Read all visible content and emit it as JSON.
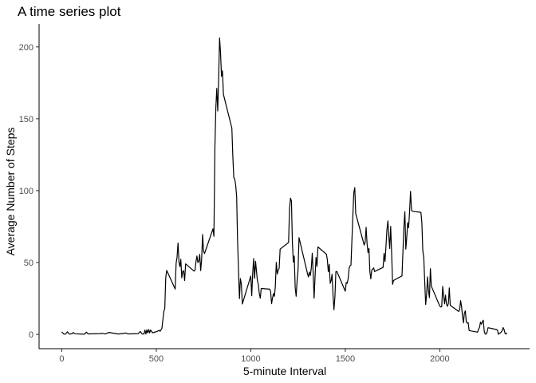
{
  "chart_data": {
    "type": "line",
    "title": "A time series plot",
    "xlabel": "5-minute Interval",
    "ylabel": "Average Number of Steps",
    "xlim": [
      -120,
      2475
    ],
    "ylim": [
      -10,
      216
    ],
    "xticks": [
      0,
      500,
      1000,
      1500,
      2000
    ],
    "yticks": [
      0,
      50,
      100,
      150,
      200
    ],
    "grid": false,
    "series": [
      {
        "color": "#000000",
        "points": [
          [
            0,
            1.7
          ],
          [
            10,
            0.3
          ],
          [
            20,
            0.1
          ],
          [
            30,
            1.8
          ],
          [
            40,
            0.1
          ],
          [
            55,
            0.5
          ],
          [
            60,
            1.2
          ],
          [
            70,
            0.4
          ],
          [
            100,
            0.2
          ],
          [
            120,
            0.1
          ],
          [
            130,
            1.5
          ],
          [
            140,
            0.3
          ],
          [
            200,
            0.5
          ],
          [
            215,
            0.7
          ],
          [
            230,
            0.2
          ],
          [
            250,
            1.3
          ],
          [
            300,
            0.2
          ],
          [
            340,
            0.9
          ],
          [
            350,
            0.3
          ],
          [
            405,
            0.5
          ],
          [
            415,
            2.0
          ],
          [
            425,
            0.3
          ],
          [
            435,
            0.2
          ],
          [
            440,
            3.0
          ],
          [
            445,
            0.2
          ],
          [
            450,
            3.1
          ],
          [
            455,
            1.0
          ],
          [
            460,
            3.3
          ],
          [
            465,
            1.0
          ],
          [
            470,
            3.0
          ],
          [
            480,
            1.1
          ],
          [
            505,
            2.0
          ],
          [
            515,
            2.8
          ],
          [
            520,
            2.1
          ],
          [
            530,
            4.1
          ],
          [
            540,
            16.0
          ],
          [
            545,
            18.0
          ],
          [
            550,
            39.5
          ],
          [
            555,
            44.5
          ],
          [
            600,
            31.5
          ],
          [
            605,
            49.3
          ],
          [
            610,
            53.8
          ],
          [
            615,
            63.5
          ],
          [
            620,
            50.2
          ],
          [
            625,
            47.1
          ],
          [
            630,
            52.2
          ],
          [
            635,
            39.3
          ],
          [
            640,
            44.0
          ],
          [
            645,
            44.2
          ],
          [
            650,
            37.4
          ],
          [
            655,
            49.0
          ],
          [
            700,
            44.0
          ],
          [
            705,
            44.6
          ],
          [
            710,
            50.5
          ],
          [
            715,
            54.5
          ],
          [
            720,
            49.9
          ],
          [
            725,
            50.9
          ],
          [
            730,
            55.7
          ],
          [
            735,
            44.3
          ],
          [
            740,
            52.3
          ],
          [
            745,
            69.5
          ],
          [
            750,
            57.8
          ],
          [
            755,
            56.2
          ],
          [
            800,
            73.4
          ],
          [
            805,
            68.2
          ],
          [
            810,
            129.4
          ],
          [
            815,
            157.5
          ],
          [
            820,
            171.2
          ],
          [
            825,
            155.4
          ],
          [
            830,
            177.3
          ],
          [
            835,
            206.2
          ],
          [
            840,
            195.9
          ],
          [
            845,
            179.6
          ],
          [
            850,
            183.4
          ],
          [
            855,
            167.0
          ],
          [
            900,
            143.5
          ],
          [
            905,
            124.0
          ],
          [
            910,
            109.1
          ],
          [
            915,
            108.1
          ],
          [
            920,
            103.7
          ],
          [
            925,
            95.9
          ],
          [
            930,
            66.2
          ],
          [
            935,
            45.2
          ],
          [
            940,
            24.8
          ],
          [
            945,
            38.8
          ],
          [
            950,
            34.98
          ],
          [
            955,
            21.1
          ],
          [
            1000,
            40.6
          ],
          [
            1005,
            26.8
          ],
          [
            1010,
            42.4
          ],
          [
            1015,
            52.7
          ],
          [
            1020,
            38.9
          ],
          [
            1025,
            50.8
          ],
          [
            1030,
            44.3
          ],
          [
            1035,
            37.4
          ],
          [
            1040,
            34.7
          ],
          [
            1045,
            28.3
          ],
          [
            1050,
            25.1
          ],
          [
            1055,
            31.9
          ],
          [
            1100,
            31.4
          ],
          [
            1105,
            29.7
          ],
          [
            1110,
            21.3
          ],
          [
            1115,
            25.5
          ],
          [
            1120,
            28.4
          ],
          [
            1125,
            26.5
          ],
          [
            1130,
            33.4
          ],
          [
            1135,
            50.0
          ],
          [
            1140,
            42.0
          ],
          [
            1145,
            44.6
          ],
          [
            1150,
            46.0
          ],
          [
            1155,
            59.3
          ],
          [
            1200,
            63.9
          ],
          [
            1205,
            87.6
          ],
          [
            1210,
            94.8
          ],
          [
            1215,
            92.8
          ],
          [
            1220,
            63.4
          ],
          [
            1225,
            50.2
          ],
          [
            1230,
            54.5
          ],
          [
            1235,
            32.4
          ],
          [
            1240,
            26.5
          ],
          [
            1245,
            37.7
          ],
          [
            1250,
            45.1
          ],
          [
            1255,
            67.3
          ],
          [
            1300,
            42.3
          ],
          [
            1305,
            39.9
          ],
          [
            1310,
            43.3
          ],
          [
            1315,
            40.98
          ],
          [
            1320,
            46.2
          ],
          [
            1325,
            56.4
          ],
          [
            1330,
            42.8
          ],
          [
            1335,
            25.1
          ],
          [
            1340,
            39.97
          ],
          [
            1345,
            53.5
          ],
          [
            1350,
            47.3
          ],
          [
            1355,
            60.8
          ],
          [
            1400,
            55.75
          ],
          [
            1405,
            51.96
          ],
          [
            1410,
            43.6
          ],
          [
            1415,
            48.7
          ],
          [
            1420,
            35.5
          ],
          [
            1425,
            37.5
          ],
          [
            1430,
            41.8
          ],
          [
            1435,
            27.5
          ],
          [
            1440,
            17.1
          ],
          [
            1445,
            26.1
          ],
          [
            1450,
            43.6
          ],
          [
            1455,
            43.8
          ],
          [
            1500,
            30.0
          ],
          [
            1505,
            36.1
          ],
          [
            1510,
            35.5
          ],
          [
            1515,
            38.8
          ],
          [
            1520,
            45.96
          ],
          [
            1525,
            47.75
          ],
          [
            1530,
            48.1
          ],
          [
            1535,
            65.3
          ],
          [
            1540,
            82.9
          ],
          [
            1545,
            98.7
          ],
          [
            1550,
            102.1
          ],
          [
            1555,
            83.96
          ],
          [
            1600,
            62.1
          ],
          [
            1605,
            64.1
          ],
          [
            1610,
            74.5
          ],
          [
            1615,
            63.2
          ],
          [
            1620,
            56.9
          ],
          [
            1625,
            59.8
          ],
          [
            1630,
            43.9
          ],
          [
            1635,
            38.6
          ],
          [
            1640,
            44.7
          ],
          [
            1645,
            45.5
          ],
          [
            1650,
            46.2
          ],
          [
            1655,
            43.7
          ],
          [
            1700,
            46.6
          ],
          [
            1705,
            56.3
          ],
          [
            1710,
            50.7
          ],
          [
            1715,
            61.2
          ],
          [
            1720,
            72.7
          ],
          [
            1725,
            78.9
          ],
          [
            1730,
            68.9
          ],
          [
            1735,
            59.7
          ],
          [
            1740,
            75.1
          ],
          [
            1745,
            56.5
          ],
          [
            1750,
            34.8
          ],
          [
            1755,
            37.5
          ],
          [
            1800,
            40.7
          ],
          [
            1805,
            58.0
          ],
          [
            1810,
            74.7
          ],
          [
            1815,
            85.3
          ],
          [
            1820,
            59.3
          ],
          [
            1825,
            67.8
          ],
          [
            1830,
            77.7
          ],
          [
            1835,
            74.2
          ],
          [
            1840,
            85.3
          ],
          [
            1845,
            99.5
          ],
          [
            1850,
            86.6
          ],
          [
            1855,
            85.6
          ],
          [
            1900,
            84.9
          ],
          [
            1905,
            77.8
          ],
          [
            1910,
            58.0
          ],
          [
            1915,
            53.4
          ],
          [
            1920,
            36.3
          ],
          [
            1925,
            20.7
          ],
          [
            1930,
            27.4
          ],
          [
            1935,
            40.0
          ],
          [
            1940,
            30.2
          ],
          [
            1945,
            25.5
          ],
          [
            1950,
            45.7
          ],
          [
            1955,
            33.5
          ],
          [
            2000,
            19.6
          ],
          [
            2005,
            19.0
          ],
          [
            2010,
            19.3
          ],
          [
            2015,
            33.3
          ],
          [
            2020,
            26.8
          ],
          [
            2025,
            21.2
          ],
          [
            2030,
            27.3
          ],
          [
            2035,
            21.3
          ],
          [
            2040,
            19.5
          ],
          [
            2045,
            21.3
          ],
          [
            2050,
            32.3
          ],
          [
            2055,
            20.2
          ],
          [
            2100,
            15.9
          ],
          [
            2105,
            17.2
          ],
          [
            2110,
            23.5
          ],
          [
            2115,
            19.2
          ],
          [
            2120,
            12.5
          ],
          [
            2125,
            8.0
          ],
          [
            2130,
            14.7
          ],
          [
            2135,
            16.3
          ],
          [
            2140,
            8.7
          ],
          [
            2145,
            7.8
          ],
          [
            2150,
            8.1
          ],
          [
            2155,
            2.6
          ],
          [
            2200,
            1.5
          ],
          [
            2205,
            3.7
          ],
          [
            2210,
            4.8
          ],
          [
            2215,
            8.5
          ],
          [
            2220,
            7.1
          ],
          [
            2225,
            8.7
          ],
          [
            2230,
            9.8
          ],
          [
            2235,
            2.2
          ],
          [
            2240,
            0.3
          ],
          [
            2245,
            0.1
          ],
          [
            2250,
            1.6
          ],
          [
            2255,
            4.6
          ],
          [
            2300,
            3.3
          ],
          [
            2305,
            2.8
          ],
          [
            2310,
            0.0
          ],
          [
            2315,
            0.8
          ],
          [
            2320,
            0.96
          ],
          [
            2325,
            1.6
          ],
          [
            2330,
            2.6
          ],
          [
            2335,
            4.7
          ],
          [
            2340,
            3.3
          ],
          [
            2345,
            0.6
          ],
          [
            2350,
            0.2
          ],
          [
            2355,
            1.1
          ]
        ]
      }
    ]
  }
}
